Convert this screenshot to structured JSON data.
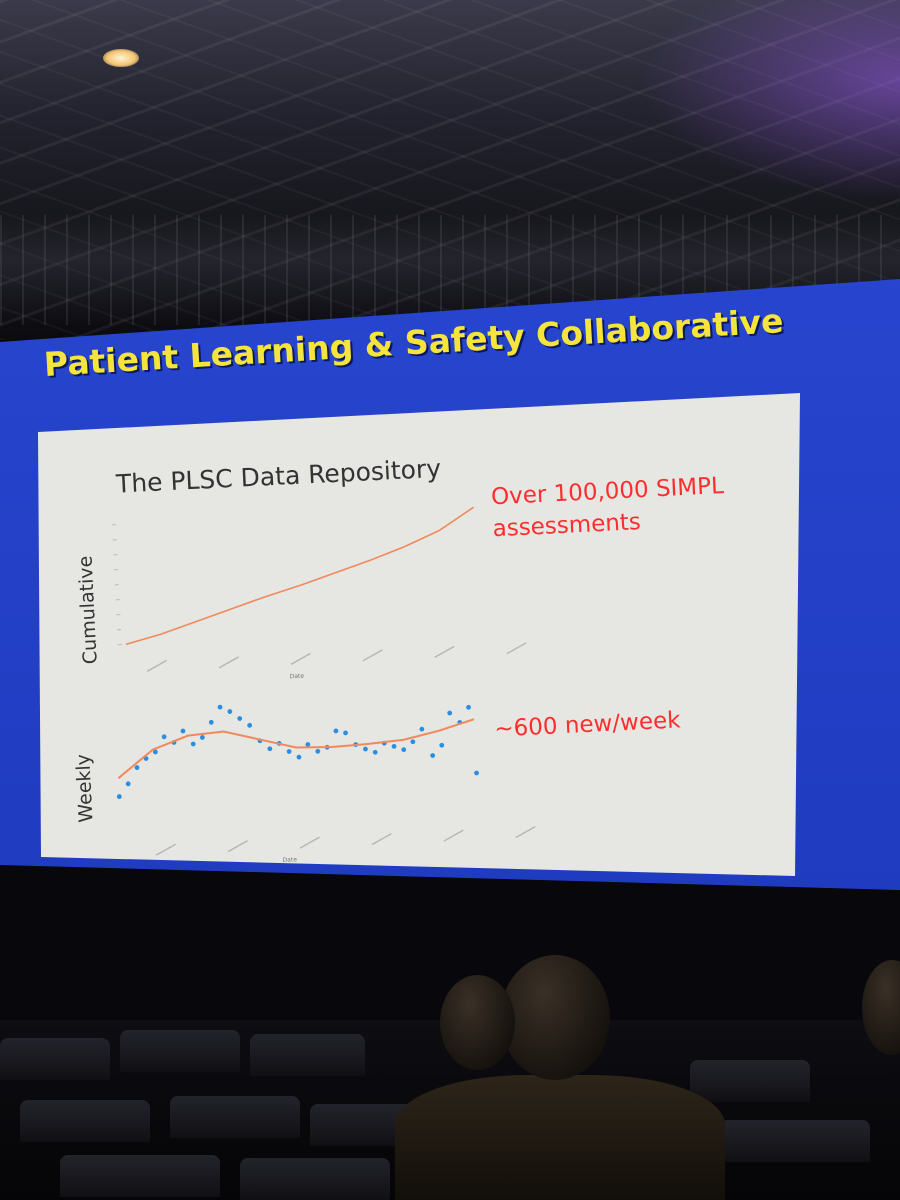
{
  "slide": {
    "title": "Patient Learning & Safety Collaborative",
    "chart_title": "The PLSC Data Repository",
    "annotation_total_line1": "Over 100,000 SIMPL",
    "annotation_total_line2": "assessments",
    "annotation_weekly": "~600 new/week"
  },
  "chart_data": [
    {
      "type": "line",
      "ylabel": "Cumulative",
      "xlabel": "Date",
      "x": [
        0,
        6,
        12,
        18,
        24,
        30,
        36,
        42,
        48,
        54,
        60
      ],
      "y": [
        0,
        7,
        16,
        25,
        34,
        42,
        51,
        60,
        70,
        82,
        100
      ],
      "grid": false
    },
    {
      "type": "scatter",
      "ylabel": "Weekly",
      "xlabel": "Date",
      "x": [
        0,
        1.6,
        3.2,
        4.8,
        6.4,
        8.0,
        9.6,
        11.2,
        12.8,
        14.4,
        16.0,
        17.6,
        19.2,
        20.8,
        22.4,
        24.0,
        25.6,
        27.2,
        28.8,
        30.4,
        32.0,
        33.6,
        35.2,
        36.8,
        38.4,
        40.0,
        41.6,
        43.2,
        44.8,
        46.4,
        48.0,
        49.6,
        51.2,
        52.8,
        54.4,
        56.0,
        57.6,
        59.2,
        60.0
      ],
      "y": [
        15,
        25,
        38,
        45,
        50,
        62,
        57,
        66,
        55,
        60,
        72,
        84,
        80,
        74,
        68,
        55,
        48,
        52,
        45,
        40,
        50,
        44,
        47,
        60,
        58,
        48,
        44,
        41,
        48,
        45,
        42,
        48,
        58,
        36,
        44,
        70,
        62,
        74,
        20
      ],
      "trend": {
        "x": [
          0,
          6,
          12,
          18,
          24,
          30,
          36,
          42,
          48,
          54,
          60
        ],
        "y": [
          30,
          52,
          62,
          64,
          56,
          48,
          47,
          48,
          50,
          56,
          64
        ]
      },
      "grid": false
    }
  ]
}
